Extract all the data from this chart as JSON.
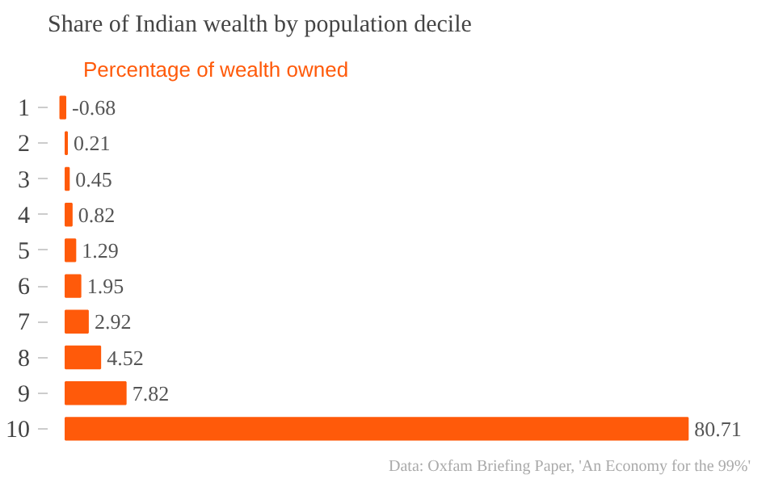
{
  "chart_data": {
    "type": "bar",
    "orientation": "horizontal",
    "title": "Share of Indian wealth by population decile",
    "subtitle": "Percentage of wealth owned",
    "categories": [
      "1",
      "2",
      "3",
      "4",
      "5",
      "6",
      "7",
      "8",
      "9",
      "10"
    ],
    "values": [
      -0.68,
      0.21,
      0.45,
      0.82,
      1.29,
      1.95,
      2.92,
      4.52,
      7.82,
      80.71
    ],
    "color": "#ff5a0a",
    "data_labels": true,
    "grid": false,
    "annotations": [
      "Data: Oxfam Briefing Paper, 'An Economy for the 99%'"
    ]
  }
}
